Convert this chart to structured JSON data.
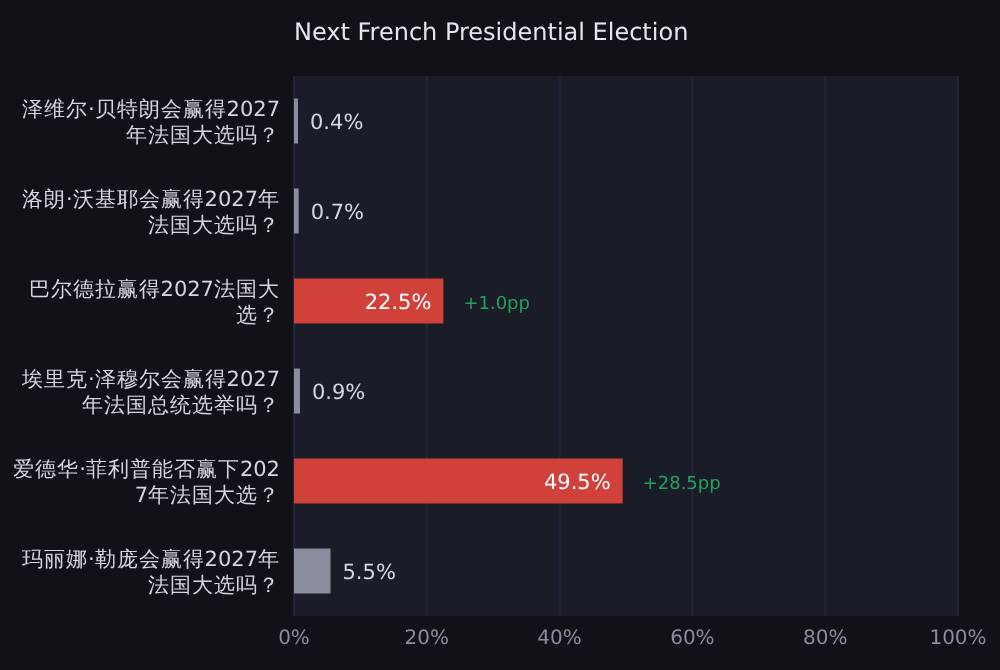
{
  "chart_data": {
    "type": "bar",
    "orientation": "horizontal",
    "title": "Next French Presidential Election",
    "categories": [
      "泽维尔·贝特朗会赢得2027年法国大选吗？",
      "洛朗·沃基耶会赢得2027年法国大选吗？",
      "巴尔德拉赢得2027法国大选？",
      "埃里克·泽穆尔会赢得2027年法国总统选举吗？",
      "爱德华·菲利普能否赢下2027年法国大选？",
      "玛丽娜·勒庞会赢得2027年法国大选吗？"
    ],
    "values": [
      0.4,
      0.7,
      22.5,
      0.9,
      49.5,
      5.5
    ],
    "value_labels": [
      "0.4%",
      "0.7%",
      "22.5%",
      "0.9%",
      "49.5%",
      "5.5%"
    ],
    "colors": [
      "#8a8d9e",
      "#8a8d9e",
      "#d0413a",
      "#8a8d9e",
      "#d0413a",
      "#8a8d9e"
    ],
    "annotations": [
      {
        "text": "+1.0pp",
        "x": 22.5,
        "y": "巴尔德拉赢得2027法国大选？"
      },
      {
        "text": "+28.5pp",
        "x": 49.5,
        "y": "爱德华·菲利普能否赢下2027年法国大选？"
      }
    ],
    "xlim": [
      0,
      100
    ],
    "xticks": [
      {
        "value": 0,
        "label": "0%"
      },
      {
        "value": 20,
        "label": "20%"
      },
      {
        "value": 40,
        "label": "40%"
      },
      {
        "value": 60,
        "label": "60%"
      },
      {
        "value": 80,
        "label": "80%"
      },
      {
        "value": 100,
        "label": "100%"
      }
    ],
    "grid": "x"
  }
}
